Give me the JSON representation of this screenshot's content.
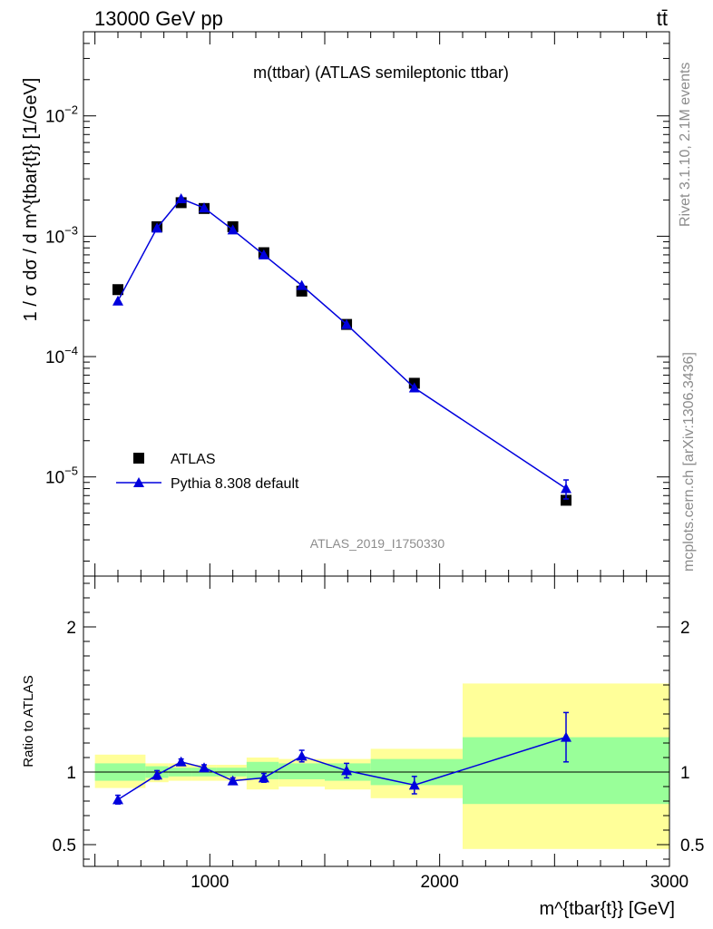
{
  "header": {
    "left": "13000 GeV pp",
    "right": "tt̄"
  },
  "side_labels": {
    "rivet": "Rivet 3.1.10,  2.1M events",
    "mcplots": "mcplots.cern.ch [arXiv:1306.3436]"
  },
  "chart_data": [
    {
      "type": "scatter",
      "title": "m(ttbar) (ATLAS semileptonic ttbar)",
      "watermark": "ATLAS_2019_I1750330",
      "ylabel": "1 / σ dσ / d m^{tbar{t}} [1/GeV]",
      "y_scale": "log",
      "xlim": [
        450,
        3000
      ],
      "ylim": [
        1.5e-06,
        0.05
      ],
      "x_ticks": [
        "1000",
        "2000",
        "3000"
      ],
      "y_ticks": [
        "10^-5",
        "10^-4",
        "10^-3",
        "10^-2"
      ],
      "legend": {
        "placement": "bottom-left"
      },
      "series": [
        {
          "name": "ATLAS",
          "style": "black squares",
          "color": "#000000",
          "x": [
            600,
            770,
            875,
            975,
            1100,
            1235,
            1400,
            1595,
            1890,
            2550
          ],
          "y": [
            0.00036,
            0.0012,
            0.0019,
            0.0017,
            0.0012,
            0.00073,
            0.00035,
            0.000185,
            6e-05,
            6.4e-06
          ]
        },
        {
          "name": "Pythia 8.308 default",
          "style": "blue triangles with line",
          "color": "#0000dd",
          "x": [
            600,
            770,
            875,
            975,
            1100,
            1235,
            1400,
            1595,
            1890,
            2550
          ],
          "y": [
            0.00029,
            0.00117,
            0.00205,
            0.00172,
            0.00113,
            0.0007,
            0.00039,
            0.000185,
            5.5e-05,
            8e-06
          ],
          "y_err_rel": [
            0.06,
            0.03,
            0.02,
            0.02,
            0.03,
            0.03,
            0.04,
            0.06,
            0.06,
            0.18
          ]
        }
      ]
    },
    {
      "type": "scatter",
      "ylabel": "Ratio to ATLAS",
      "xlabel": "m^{tbar{t}} [GeV]",
      "xlim": [
        450,
        3000
      ],
      "ylim": [
        0.35,
        2.35
      ],
      "x_ticks": [
        "1000",
        "2000",
        "3000"
      ],
      "y_ticks": [
        "0.5",
        "1",
        "2"
      ],
      "reference_line": 1,
      "bands": [
        {
          "x0": 500,
          "x1": 720,
          "green": [
            0.94,
            1.06
          ],
          "yellow": [
            0.89,
            1.12
          ]
        },
        {
          "x0": 720,
          "x1": 820,
          "green": [
            0.96,
            1.04
          ],
          "yellow": [
            0.93,
            1.06
          ]
        },
        {
          "x0": 820,
          "x1": 920,
          "green": [
            0.97,
            1.03
          ],
          "yellow": [
            0.94,
            1.06
          ]
        },
        {
          "x0": 920,
          "x1": 1030,
          "green": [
            0.97,
            1.03
          ],
          "yellow": [
            0.94,
            1.05
          ]
        },
        {
          "x0": 1030,
          "x1": 1160,
          "green": [
            0.97,
            1.03
          ],
          "yellow": [
            0.94,
            1.05
          ]
        },
        {
          "x0": 1160,
          "x1": 1300,
          "green": [
            0.95,
            1.07
          ],
          "yellow": [
            0.88,
            1.1
          ]
        },
        {
          "x0": 1300,
          "x1": 1500,
          "green": [
            0.95,
            1.06
          ],
          "yellow": [
            0.9,
            1.09
          ]
        },
        {
          "x0": 1500,
          "x1": 1700,
          "green": [
            0.94,
            1.06
          ],
          "yellow": [
            0.88,
            1.09
          ]
        },
        {
          "x0": 1700,
          "x1": 2100,
          "green": [
            0.91,
            1.09
          ],
          "yellow": [
            0.82,
            1.16
          ]
        },
        {
          "x0": 2100,
          "x1": 3000,
          "green": [
            0.78,
            1.24
          ],
          "yellow": [
            0.47,
            1.61
          ]
        }
      ],
      "band_colors": {
        "green": "#99ff99",
        "yellow": "#ffff99"
      },
      "series": [
        {
          "name": "Pythia 8.308 default",
          "color": "#0000dd",
          "x": [
            600,
            770,
            875,
            975,
            1100,
            1235,
            1400,
            1595,
            1890,
            2550
          ],
          "y": [
            0.81,
            0.98,
            1.07,
            1.03,
            0.94,
            0.96,
            1.11,
            1.01,
            0.91,
            1.24
          ],
          "y_err": [
            0.03,
            0.03,
            0.02,
            0.02,
            0.02,
            0.03,
            0.04,
            0.05,
            0.06,
            0.17
          ]
        }
      ]
    }
  ]
}
